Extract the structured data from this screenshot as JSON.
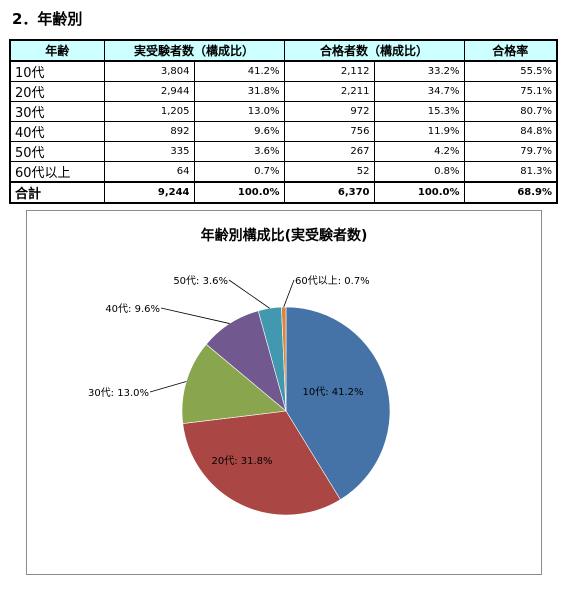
{
  "section": {
    "title": "2．年齢別"
  },
  "table": {
    "headers": [
      "年齢",
      "実受験者数（構成比）",
      "合格者数（構成比）",
      "合格率"
    ],
    "rows": [
      {
        "label": "10代",
        "examinees": "3,804",
        "examinees_ratio": "41.2%",
        "passers": "2,112",
        "passers_ratio": "33.2%",
        "pass_rate": "55.5%"
      },
      {
        "label": "20代",
        "examinees": "2,944",
        "examinees_ratio": "31.8%",
        "passers": "2,211",
        "passers_ratio": "34.7%",
        "pass_rate": "75.1%"
      },
      {
        "label": "30代",
        "examinees": "1,205",
        "examinees_ratio": "13.0%",
        "passers": "972",
        "passers_ratio": "15.3%",
        "pass_rate": "80.7%"
      },
      {
        "label": "40代",
        "examinees": "892",
        "examinees_ratio": "9.6%",
        "passers": "756",
        "passers_ratio": "11.9%",
        "pass_rate": "84.8%"
      },
      {
        "label": "50代",
        "examinees": "335",
        "examinees_ratio": "3.6%",
        "passers": "267",
        "passers_ratio": "4.2%",
        "pass_rate": "79.7%"
      },
      {
        "label": "60代以上",
        "examinees": "64",
        "examinees_ratio": "0.7%",
        "passers": "52",
        "passers_ratio": "0.8%",
        "pass_rate": "81.3%"
      }
    ],
    "total": {
      "label": "合計",
      "examinees": "9,244",
      "examinees_ratio": "100.0%",
      "passers": "6,370",
      "passers_ratio": "100.0%",
      "pass_rate": "68.9%"
    }
  },
  "chart_data": {
    "type": "pie",
    "title": "年齢別構成比(実受験者数)",
    "categories": [
      "10代",
      "20代",
      "30代",
      "40代",
      "50代",
      "60代以上"
    ],
    "values": [
      41.2,
      31.8,
      13.0,
      9.6,
      3.6,
      0.7
    ],
    "data_labels": [
      "10代: 41.2%",
      "20代: 31.8%",
      "30代: 13.0%",
      "40代: 9.6%",
      "50代: 3.6%",
      "60代以上: 0.7%"
    ],
    "colors": [
      "#4572a7",
      "#aa4643",
      "#89a54e",
      "#71588f",
      "#4198af",
      "#db843d"
    ],
    "legend": "none"
  }
}
